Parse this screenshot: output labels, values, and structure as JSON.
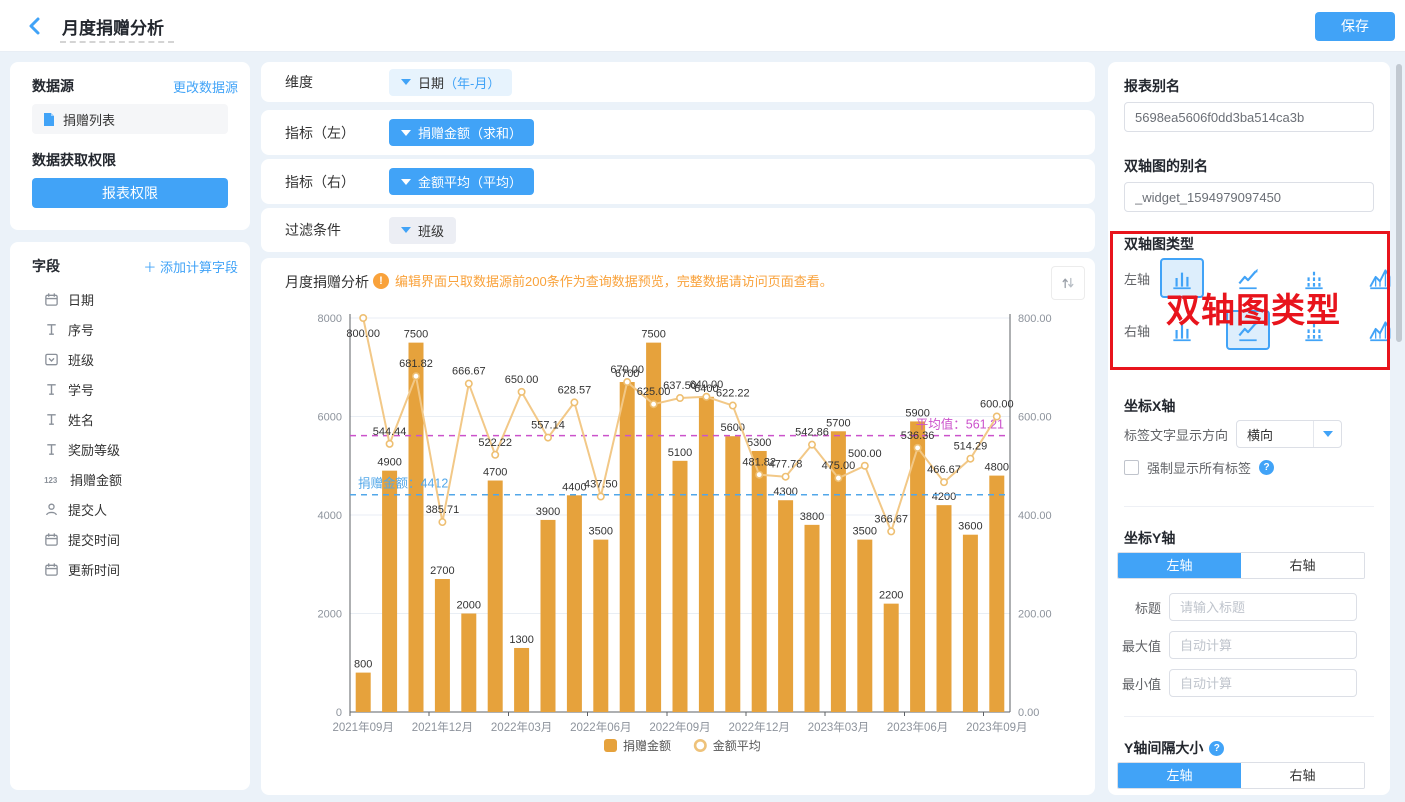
{
  "header": {
    "title": "月度捐赠分析",
    "save_label": "保存"
  },
  "left_panel": {
    "datasource_title": "数据源",
    "change_link": "更改数据源",
    "datasource_item": "捐赠列表",
    "permission_title": "数据获取权限",
    "permission_button": "报表权限",
    "fields_title": "字段",
    "add_field_plus": "＋",
    "add_field_link": "添加计算字段",
    "fields": [
      {
        "icon": "calendar",
        "label": "日期"
      },
      {
        "icon": "text",
        "label": "序号"
      },
      {
        "icon": "select",
        "label": "班级"
      },
      {
        "icon": "text",
        "label": "学号"
      },
      {
        "icon": "text",
        "label": "姓名"
      },
      {
        "icon": "text",
        "label": "奖励等级"
      },
      {
        "icon": "number",
        "label": "捐赠金额"
      },
      {
        "icon": "person",
        "label": "提交人"
      },
      {
        "icon": "calendar",
        "label": "提交时间"
      },
      {
        "icon": "calendar",
        "label": "更新时间"
      }
    ]
  },
  "config_rows": [
    {
      "label": "维度",
      "tag": "日期",
      "tag_suffix": "（年-月）"
    },
    {
      "label": "指标（左）",
      "tag": "捐赠金额（求和）"
    },
    {
      "label": "指标（右）",
      "tag": "金额平均（平均）"
    },
    {
      "label": "过滤条件",
      "tag": "班级"
    }
  ],
  "chart_card": {
    "title": "月度捐赠分析",
    "warning_icon": "!",
    "warning": "编辑界面只取数据源前200条作为查询数据预览，完整数据请访问页面查看。"
  },
  "chart_data": {
    "type": "bar",
    "subtype": "dual-axis-bar-line",
    "n_points": 25,
    "x_tick_labels": [
      "2021年09月",
      "2021年12月",
      "2022年03月",
      "2022年06月",
      "2022年09月",
      "2022年12月",
      "2023年03月",
      "2023年06月",
      "2023年09月"
    ],
    "x_tick_indices": [
      0,
      3,
      6,
      9,
      12,
      15,
      18,
      21,
      24
    ],
    "left_axis": {
      "min": 0,
      "max": 8000,
      "ticks": [
        0,
        2000,
        4000,
        6000,
        8000
      ]
    },
    "right_axis": {
      "min": 0,
      "max": 800,
      "ticks": [
        "0.00",
        "200.00",
        "400.00",
        "600.00",
        "800.00"
      ]
    },
    "series": [
      {
        "name": "捐赠金额",
        "type": "bar",
        "axis": "left",
        "color": "#e6a23c",
        "values": [
          800,
          4900,
          7500,
          2700,
          2000,
          4700,
          1300,
          3900,
          4400,
          3500,
          6700,
          7500,
          5100,
          6400,
          5600,
          5300,
          4300,
          3800,
          5700,
          3500,
          2200,
          5900,
          4200,
          3600,
          4800
        ]
      },
      {
        "name": "金额平均",
        "type": "line",
        "axis": "right",
        "color": "#f2c887",
        "marker_color": "#eebf72",
        "values": [
          800,
          544.44,
          681.82,
          385.71,
          666.67,
          522.22,
          650,
          557.14,
          628.57,
          437.5,
          670,
          625,
          637.5,
          640,
          622.22,
          481.82,
          477.78,
          542.86,
          475,
          500,
          366.67,
          536.36,
          466.67,
          514.29,
          600
        ],
        "labels": [
          "800.00",
          "544.44",
          "681.82",
          "385.71",
          "666.67",
          "522.22",
          "650.00",
          "557.14",
          "628.57",
          "437.50",
          "670.00",
          "625.00",
          "637.50",
          "640.00",
          "622.22",
          "481.82",
          "477.78",
          "542.86",
          "475.00",
          "500.00",
          "366.67",
          "536.36",
          "466.67",
          "514.29",
          "600.00"
        ]
      }
    ],
    "reference_lines": [
      {
        "label": "捐赠金额：4412",
        "value": 4412,
        "axis": "left",
        "color": "#52a7e9"
      },
      {
        "label": "平均值：561.21",
        "value": 561.21,
        "axis": "right",
        "color": "#cb52cb"
      }
    ],
    "legend": [
      {
        "label": "捐赠金额",
        "marker": "square",
        "color": "#e6a23c"
      },
      {
        "label": "金额平均",
        "marker": "circle",
        "color": "#eec27a"
      }
    ]
  },
  "right_panel": {
    "report_alias_label": "报表别名",
    "report_alias_value": "5698ea5606f0dd3ba514ca3b",
    "widget_alias_label": "双轴图的别名",
    "widget_alias_value": "_widget_1594979097450",
    "axis_type": {
      "title": "双轴图类型",
      "options": [
        "bar",
        "line",
        "stacked-bar",
        "area"
      ],
      "rows": [
        {
          "key": "left",
          "label": "左轴",
          "selected": "bar"
        },
        {
          "key": "right",
          "label": "右轴",
          "selected": "line"
        }
      ]
    },
    "x_axis_title": "坐标X轴",
    "label_direction_label": "标签文字显示方向",
    "label_direction_value": "横向",
    "force_show_labels": "强制显示所有标签",
    "help_mark": "?",
    "y_axis_title": "坐标Y轴",
    "tab_left": "左轴",
    "tab_right": "右轴",
    "title_label": "标题",
    "title_placeholder": "请输入标题",
    "max_label": "最大值",
    "max_placeholder": "自动计算",
    "min_label": "最小值",
    "min_placeholder": "自动计算",
    "y_interval_title": "Y轴间隔大小"
  },
  "annotation": {
    "text": "双轴图类型",
    "color": "#e8141c"
  },
  "colors": {
    "accent": "#41a3f7",
    "page_bg": "#ebf2f9",
    "warning": "#f9a23b"
  }
}
